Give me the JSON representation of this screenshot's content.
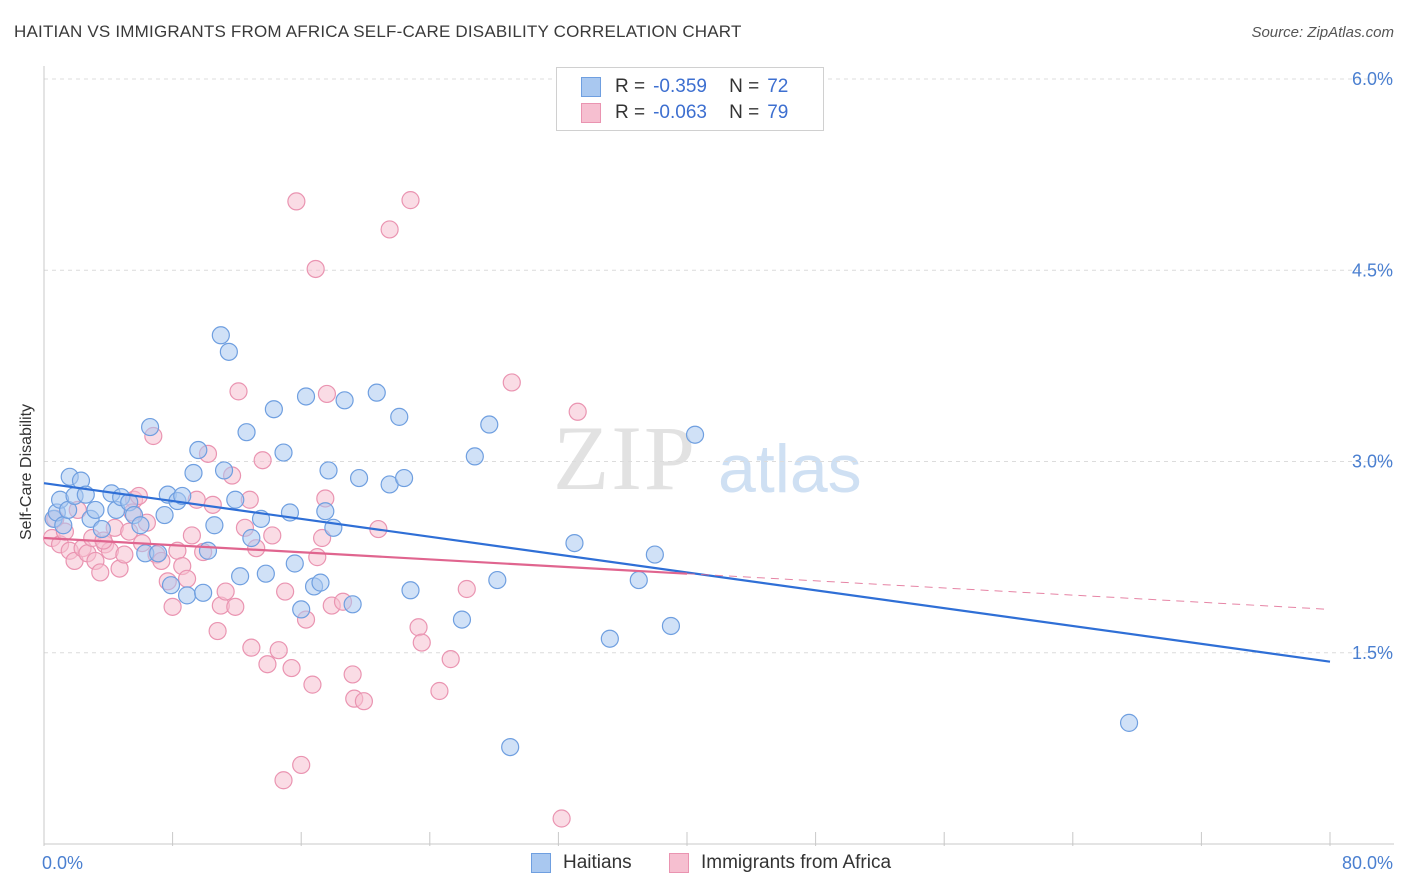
{
  "header": {
    "title": "HAITIAN VS IMMIGRANTS FROM AFRICA SELF-CARE DISABILITY CORRELATION CHART",
    "source": "Source: ZipAtlas.com"
  },
  "watermark": {
    "zip": "ZIP",
    "atlas": "atlas"
  },
  "legend_top": {
    "rows": [
      {
        "r_label": "R =",
        "r_value": "-0.359",
        "n_label": "N =",
        "n_value": "72"
      },
      {
        "r_label": "R =",
        "r_value": "-0.063",
        "n_label": "N =",
        "n_value": "79"
      }
    ]
  },
  "legend_bottom": {
    "items": [
      "Haitians",
      "Immigrants from Africa"
    ]
  },
  "colors": {
    "blue_fill": "#a9c8f0",
    "blue_stroke": "#6f9fe0",
    "blue_line": "#2f6fd6",
    "pink_fill": "#f6bfd0",
    "pink_stroke": "#ea94b1",
    "pink_line": "#e0658f",
    "axis_text": "#4a7fd0",
    "grid": "#dcdcdc"
  },
  "chart_data": {
    "type": "scatter",
    "title": "HAITIAN VS IMMIGRANTS FROM AFRICA SELF-CARE DISABILITY CORRELATION CHART",
    "xlabel": "",
    "ylabel": "Self-Care Disability",
    "xlim": [
      0,
      80
    ],
    "ylim": [
      0,
      6.2
    ],
    "x_tick_labels": [
      "0.0%",
      "80.0%"
    ],
    "y_ticks": [
      1.5,
      3.0,
      4.5,
      6.0
    ],
    "y_tick_labels": [
      "1.5%",
      "3.0%",
      "4.5%",
      "6.0%"
    ],
    "grid": true,
    "legend_placement": "top-center",
    "series": [
      {
        "name": "Haitians",
        "R": -0.359,
        "N": 72,
        "trend": {
          "x": [
            0,
            80
          ],
          "y": [
            2.83,
            1.43
          ],
          "style": "solid"
        },
        "points": [
          [
            0.6,
            2.55
          ],
          [
            0.8,
            2.6
          ],
          [
            1.0,
            2.7
          ],
          [
            1.2,
            2.5
          ],
          [
            1.5,
            2.62
          ],
          [
            1.6,
            2.88
          ],
          [
            1.9,
            2.73
          ],
          [
            2.3,
            2.85
          ],
          [
            2.6,
            2.74
          ],
          [
            2.9,
            2.55
          ],
          [
            3.2,
            2.62
          ],
          [
            3.6,
            2.47
          ],
          [
            4.2,
            2.75
          ],
          [
            4.5,
            2.62
          ],
          [
            4.8,
            2.72
          ],
          [
            5.3,
            2.68
          ],
          [
            5.6,
            2.58
          ],
          [
            6.0,
            2.5
          ],
          [
            6.3,
            2.28
          ],
          [
            6.6,
            3.27
          ],
          [
            7.1,
            2.28
          ],
          [
            7.5,
            2.58
          ],
          [
            7.7,
            2.74
          ],
          [
            7.9,
            2.03
          ],
          [
            8.3,
            2.69
          ],
          [
            8.6,
            2.73
          ],
          [
            8.9,
            1.95
          ],
          [
            9.3,
            2.91
          ],
          [
            9.6,
            3.09
          ],
          [
            9.9,
            1.97
          ],
          [
            10.2,
            2.3
          ],
          [
            10.6,
            2.5
          ],
          [
            11.0,
            3.99
          ],
          [
            11.2,
            2.93
          ],
          [
            11.5,
            3.86
          ],
          [
            11.9,
            2.7
          ],
          [
            12.2,
            2.1
          ],
          [
            12.6,
            3.23
          ],
          [
            12.9,
            2.4
          ],
          [
            13.5,
            2.55
          ],
          [
            13.8,
            2.12
          ],
          [
            14.3,
            3.41
          ],
          [
            14.9,
            3.07
          ],
          [
            15.3,
            2.6
          ],
          [
            15.6,
            2.2
          ],
          [
            16.0,
            1.84
          ],
          [
            16.3,
            3.51
          ],
          [
            16.8,
            2.02
          ],
          [
            17.2,
            2.05
          ],
          [
            17.5,
            2.61
          ],
          [
            17.7,
            2.93
          ],
          [
            18.0,
            2.48
          ],
          [
            18.7,
            3.48
          ],
          [
            19.2,
            1.88
          ],
          [
            19.6,
            2.87
          ],
          [
            20.7,
            3.54
          ],
          [
            21.5,
            2.82
          ],
          [
            22.1,
            3.35
          ],
          [
            22.4,
            2.87
          ],
          [
            22.8,
            1.99
          ],
          [
            26.0,
            1.76
          ],
          [
            26.8,
            3.04
          ],
          [
            27.7,
            3.29
          ],
          [
            28.2,
            2.07
          ],
          [
            29.0,
            0.76
          ],
          [
            33.0,
            2.36
          ],
          [
            35.2,
            1.61
          ],
          [
            37.0,
            2.07
          ],
          [
            38.0,
            2.27
          ],
          [
            39.0,
            1.71
          ],
          [
            40.5,
            3.21
          ],
          [
            67.5,
            0.95
          ]
        ]
      },
      {
        "name": "Immigrants from Africa",
        "R": -0.063,
        "N": 79,
        "trend": {
          "x": [
            0,
            40
          ],
          "y": [
            2.4,
            2.12
          ],
          "style": "solid",
          "extension": {
            "x": [
              40,
              80
            ],
            "y": [
              2.12,
              1.84
            ],
            "style": "dashed"
          }
        },
        "points": [
          [
            0.5,
            2.4
          ],
          [
            0.7,
            2.55
          ],
          [
            1.0,
            2.35
          ],
          [
            1.3,
            2.45
          ],
          [
            1.6,
            2.3
          ],
          [
            1.9,
            2.22
          ],
          [
            2.1,
            2.62
          ],
          [
            2.4,
            2.32
          ],
          [
            2.7,
            2.28
          ],
          [
            3.0,
            2.4
          ],
          [
            3.2,
            2.22
          ],
          [
            3.5,
            2.13
          ],
          [
            3.8,
            2.35
          ],
          [
            4.1,
            2.3
          ],
          [
            4.4,
            2.48
          ],
          [
            4.7,
            2.16
          ],
          [
            5.0,
            2.27
          ],
          [
            5.3,
            2.45
          ],
          [
            5.6,
            2.7
          ],
          [
            5.9,
            2.73
          ],
          [
            6.1,
            2.36
          ],
          [
            6.4,
            2.52
          ],
          [
            6.8,
            3.2
          ],
          [
            7.0,
            2.27
          ],
          [
            7.3,
            2.22
          ],
          [
            7.7,
            2.06
          ],
          [
            8.0,
            1.86
          ],
          [
            8.3,
            2.3
          ],
          [
            8.6,
            2.18
          ],
          [
            8.9,
            2.08
          ],
          [
            9.2,
            2.42
          ],
          [
            9.5,
            2.7
          ],
          [
            9.9,
            2.29
          ],
          [
            10.2,
            3.06
          ],
          [
            10.5,
            2.66
          ],
          [
            10.8,
            1.67
          ],
          [
            11.0,
            1.87
          ],
          [
            11.3,
            1.98
          ],
          [
            11.7,
            2.89
          ],
          [
            11.9,
            1.86
          ],
          [
            12.1,
            3.55
          ],
          [
            12.5,
            2.48
          ],
          [
            12.8,
            2.7
          ],
          [
            12.9,
            1.54
          ],
          [
            13.2,
            2.32
          ],
          [
            13.6,
            3.01
          ],
          [
            13.9,
            1.41
          ],
          [
            14.2,
            2.42
          ],
          [
            14.6,
            1.52
          ],
          [
            15.0,
            1.98
          ],
          [
            15.4,
            1.38
          ],
          [
            15.7,
            5.04
          ],
          [
            16.0,
            0.62
          ],
          [
            16.3,
            1.76
          ],
          [
            16.7,
            1.25
          ],
          [
            16.9,
            4.51
          ],
          [
            17.3,
            2.4
          ],
          [
            17.5,
            2.71
          ],
          [
            17.6,
            3.53
          ],
          [
            17.9,
            1.87
          ],
          [
            18.6,
            1.9
          ],
          [
            19.2,
            1.33
          ],
          [
            19.3,
            1.14
          ],
          [
            19.9,
            1.12
          ],
          [
            20.8,
            2.47
          ],
          [
            21.5,
            4.82
          ],
          [
            22.8,
            5.05
          ],
          [
            23.3,
            1.7
          ],
          [
            23.5,
            1.58
          ],
          [
            24.6,
            1.2
          ],
          [
            25.3,
            1.45
          ],
          [
            26.3,
            2.0
          ],
          [
            29.1,
            3.62
          ],
          [
            32.2,
            0.2
          ],
          [
            33.2,
            3.39
          ],
          [
            14.9,
            0.5
          ],
          [
            17.0,
            2.25
          ],
          [
            5.5,
            2.6
          ],
          [
            3.7,
            2.38
          ]
        ]
      }
    ]
  }
}
